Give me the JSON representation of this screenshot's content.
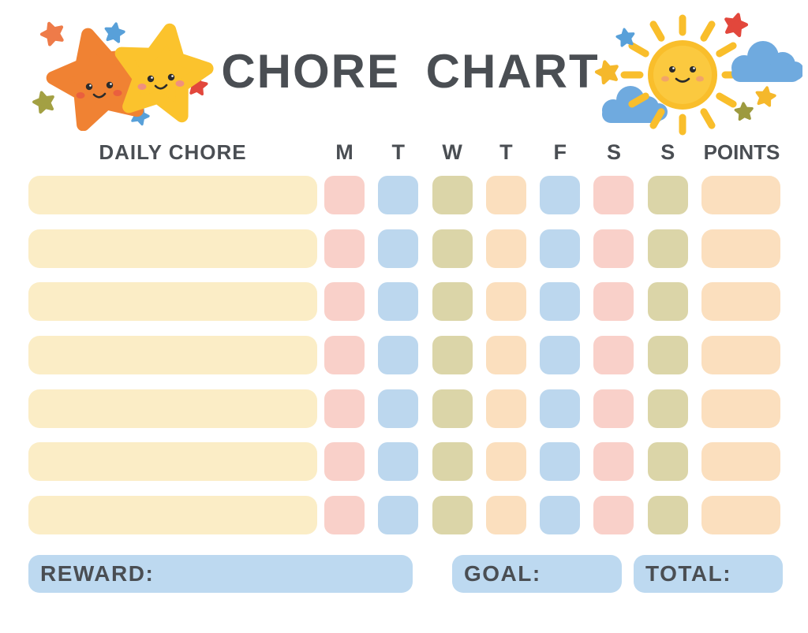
{
  "title": "CHORE CHART",
  "table": {
    "chore_column_header": "DAILY CHORE",
    "day_headers": [
      "M",
      "T",
      "W",
      "T",
      "F",
      "S",
      "S"
    ],
    "points_header": "POINTS",
    "row_count": 7,
    "day_cell_colors": [
      "pink",
      "blue",
      "olive",
      "peach",
      "blue",
      "pink",
      "olive"
    ],
    "points_cell_color": "peach",
    "chore_values": [
      "",
      "",
      "",
      "",
      "",
      "",
      ""
    ]
  },
  "footer": {
    "reward_label": "REWARD:",
    "goal_label": "GOAL:",
    "total_label": "TOTAL:",
    "reward_value": "",
    "goal_value": "",
    "total_value": ""
  },
  "colors": {
    "pink": "#F9D0C9",
    "blue": "#BCD7EE",
    "olive": "#DBD5A8",
    "peach": "#FBDFBE",
    "yellow": "#FBEDC6",
    "footer_box_blue": "#BDD9F0",
    "text_dark": "#4A4E53",
    "star_orange": "#F08233",
    "star_yellow": "#FBC32D",
    "sun_yellow": "#F9BE2B",
    "cloud_blue": "#6FAADF",
    "mini_star_red": "#E2473C",
    "mini_star_blue": "#58A0D9",
    "mini_star_olive": "#A3A043",
    "mini_star_orange": "#EE7B49",
    "mini_star_yellow": "#F5B82B",
    "face_dark": "#2B2B2B",
    "cheek_orange": "#EA5F3E",
    "cheek_pink": "#F0907E",
    "cheek_sun": "#F2A469"
  },
  "decorations": {
    "left": "two smiling stars with mini stars",
    "right": "smiling sun with clouds and mini stars"
  }
}
